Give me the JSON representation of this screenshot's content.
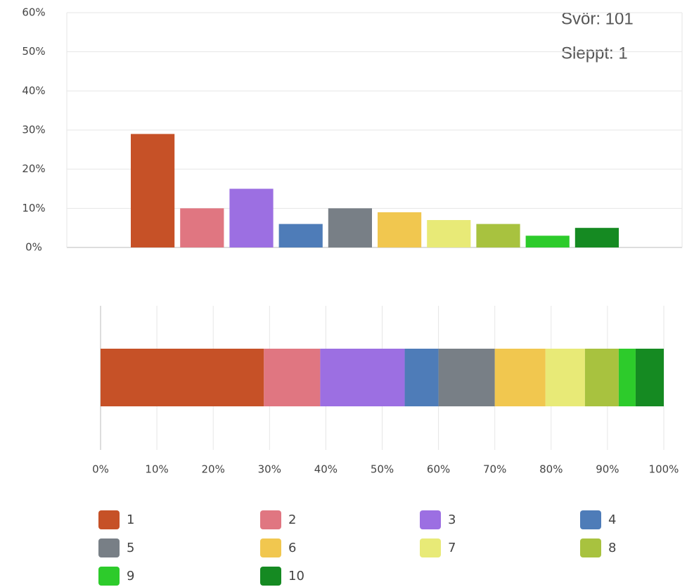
{
  "chart_data": [
    {
      "type": "bar",
      "annotations": [
        "Svör: 101",
        "Sleppt: 1"
      ],
      "categories": [
        null,
        null,
        null,
        null,
        null,
        null,
        null,
        null,
        null,
        null
      ],
      "values": [
        29,
        10,
        15,
        6,
        10,
        9,
        7,
        6,
        3,
        5
      ],
      "colors": [
        "#c65127",
        "#e07681",
        "#9c6fe2",
        "#4e7cb8",
        "#787f86",
        "#f1c74f",
        "#e8ea77",
        "#a8c23f",
        "#2dcb2b",
        "#158a22"
      ],
      "ylim": [
        0,
        60
      ],
      "yticks": [
        {
          "value": 0,
          "label": "0%"
        },
        {
          "value": 10,
          "label": "10%"
        },
        {
          "value": 20,
          "label": "20%"
        },
        {
          "value": 30,
          "label": "30%"
        },
        {
          "value": 40,
          "label": "40%"
        },
        {
          "value": 50,
          "label": "50%"
        },
        {
          "value": 60,
          "label": "60%"
        }
      ],
      "grid": true
    },
    {
      "type": "stacked_bar_h",
      "series": [
        {
          "name": "1",
          "color": "#c65127",
          "values": [
            29
          ]
        },
        {
          "name": "2",
          "color": "#e07681",
          "values": [
            10
          ]
        },
        {
          "name": "3",
          "color": "#9c6fe2",
          "values": [
            15
          ]
        },
        {
          "name": "4",
          "color": "#4e7cb8",
          "values": [
            6
          ]
        },
        {
          "name": "5",
          "color": "#787f86",
          "values": [
            10
          ]
        },
        {
          "name": "6",
          "color": "#f1c74f",
          "values": [
            9
          ]
        },
        {
          "name": "7",
          "color": "#e8ea77",
          "values": [
            7
          ]
        },
        {
          "name": "8",
          "color": "#a8c23f",
          "values": [
            6
          ]
        },
        {
          "name": "9",
          "color": "#2dcb2b",
          "values": [
            3
          ]
        },
        {
          "name": "10",
          "color": "#158a22",
          "values": [
            5
          ]
        }
      ],
      "xlim": [
        0,
        100
      ],
      "xticks": [
        {
          "value": 0,
          "label": "0%"
        },
        {
          "value": 10,
          "label": "10%"
        },
        {
          "value": 20,
          "label": "20%"
        },
        {
          "value": 30,
          "label": "30%"
        },
        {
          "value": 40,
          "label": "40%"
        },
        {
          "value": 50,
          "label": "50%"
        },
        {
          "value": 60,
          "label": "60%"
        },
        {
          "value": 70,
          "label": "70%"
        },
        {
          "value": 80,
          "label": "80%"
        },
        {
          "value": 90,
          "label": "90%"
        },
        {
          "value": 100,
          "label": "100%"
        }
      ],
      "grid": true,
      "legend": "bottom"
    }
  ]
}
